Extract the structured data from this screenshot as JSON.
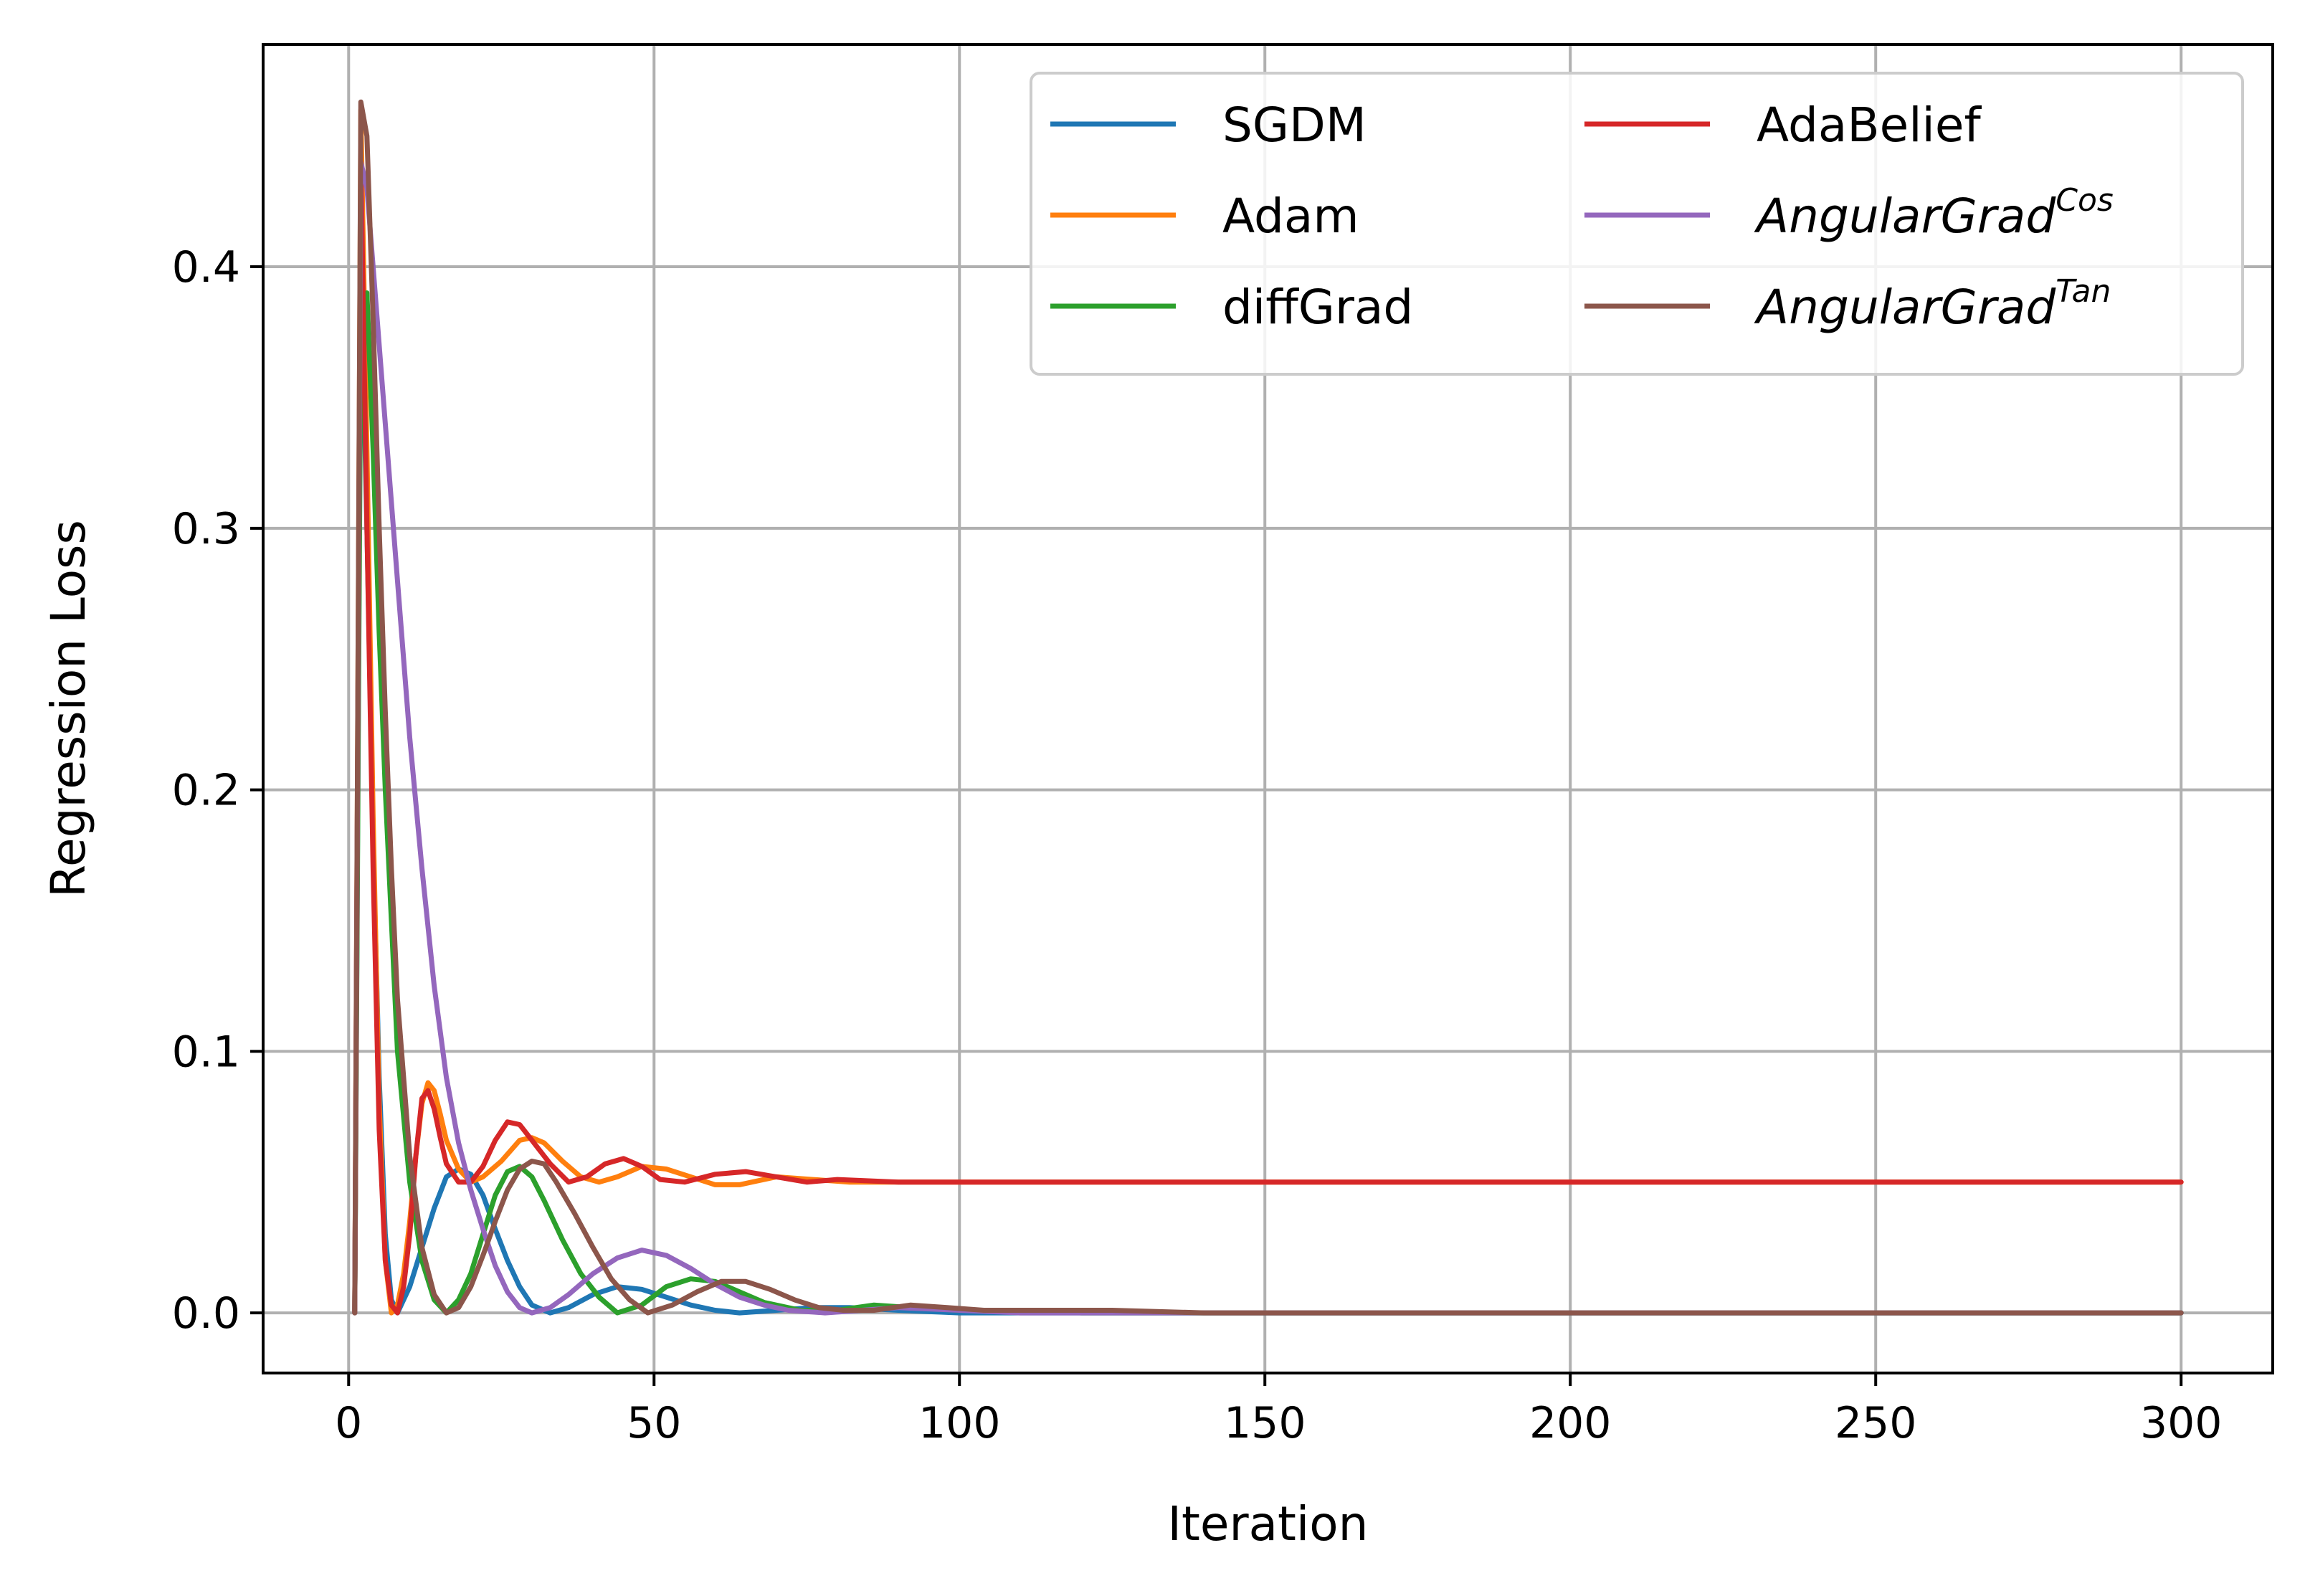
{
  "chart_data": {
    "type": "line",
    "title": "",
    "xlabel": "Iteration",
    "ylabel": "Regression Loss",
    "xlim": [
      -14,
      315
    ],
    "ylim": [
      -0.023,
      0.485
    ],
    "xticks": [
      0,
      50,
      100,
      150,
      200,
      250,
      300
    ],
    "xtick_labels": [
      "0",
      "50",
      "100",
      "150",
      "200",
      "250",
      "300"
    ],
    "yticks": [
      0.0,
      0.1,
      0.2,
      0.3,
      0.4
    ],
    "ytick_labels": [
      "0.0",
      "0.1",
      "0.2",
      "0.3",
      "0.4"
    ],
    "grid": true,
    "legend": {
      "placement": "top-right",
      "columns": 2
    },
    "series": [
      {
        "name": "SGDM",
        "legend_base": "SGDM",
        "legend_sup": "",
        "legend_italic": false,
        "color": "#1f77b4",
        "points": [
          [
            1,
            0
          ],
          [
            2,
            0.4
          ],
          [
            3,
            0.3
          ],
          [
            4,
            0.18
          ],
          [
            5,
            0.09
          ],
          [
            6,
            0.03
          ],
          [
            7,
            0.005
          ],
          [
            8,
            0
          ],
          [
            10,
            0.01
          ],
          [
            12,
            0.025
          ],
          [
            14,
            0.04
          ],
          [
            16,
            0.052
          ],
          [
            18,
            0.055
          ],
          [
            20,
            0.053
          ],
          [
            22,
            0.045
          ],
          [
            24,
            0.032
          ],
          [
            26,
            0.02
          ],
          [
            28,
            0.01
          ],
          [
            30,
            0.003
          ],
          [
            33,
            0
          ],
          [
            36,
            0.002
          ],
          [
            40,
            0.007
          ],
          [
            44,
            0.01
          ],
          [
            48,
            0.009
          ],
          [
            52,
            0.006
          ],
          [
            56,
            0.003
          ],
          [
            60,
            0.001
          ],
          [
            64,
            0
          ],
          [
            70,
            0.001
          ],
          [
            76,
            0.002
          ],
          [
            82,
            0.002
          ],
          [
            90,
            0.001
          ],
          [
            100,
            0
          ],
          [
            300,
            0
          ]
        ]
      },
      {
        "name": "Adam",
        "legend_base": "Adam",
        "legend_sup": "",
        "legend_italic": false,
        "color": "#ff7f0e",
        "points": [
          [
            1,
            0
          ],
          [
            2,
            0.46
          ],
          [
            3,
            0.33
          ],
          [
            4,
            0.19
          ],
          [
            5,
            0.08
          ],
          [
            6,
            0.02
          ],
          [
            7,
            0
          ],
          [
            8,
            0.003
          ],
          [
            9,
            0.015
          ],
          [
            10,
            0.035
          ],
          [
            11,
            0.06
          ],
          [
            12,
            0.08
          ],
          [
            13,
            0.088
          ],
          [
            14,
            0.085
          ],
          [
            15,
            0.076
          ],
          [
            16,
            0.066
          ],
          [
            18,
            0.055
          ],
          [
            20,
            0.05
          ],
          [
            22,
            0.052
          ],
          [
            25,
            0.058
          ],
          [
            28,
            0.066
          ],
          [
            30,
            0.067
          ],
          [
            32,
            0.065
          ],
          [
            35,
            0.058
          ],
          [
            38,
            0.052
          ],
          [
            41,
            0.05
          ],
          [
            44,
            0.052
          ],
          [
            48,
            0.056
          ],
          [
            52,
            0.055
          ],
          [
            56,
            0.052
          ],
          [
            60,
            0.049
          ],
          [
            64,
            0.049
          ],
          [
            70,
            0.052
          ],
          [
            76,
            0.051
          ],
          [
            82,
            0.05
          ],
          [
            90,
            0.05
          ],
          [
            100,
            0.05
          ],
          [
            120,
            0.05
          ],
          [
            300,
            0.05
          ]
        ]
      },
      {
        "name": "diffGrad",
        "legend_base": "diffGrad",
        "legend_sup": "",
        "legend_italic": false,
        "color": "#2ca02c",
        "points": [
          [
            1,
            0
          ],
          [
            2,
            0.38
          ],
          [
            3,
            0.39
          ],
          [
            4,
            0.33
          ],
          [
            5,
            0.26
          ],
          [
            6,
            0.2
          ],
          [
            7,
            0.15
          ],
          [
            8,
            0.1
          ],
          [
            10,
            0.05
          ],
          [
            12,
            0.02
          ],
          [
            14,
            0.005
          ],
          [
            16,
            0
          ],
          [
            18,
            0.005
          ],
          [
            20,
            0.015
          ],
          [
            22,
            0.03
          ],
          [
            24,
            0.045
          ],
          [
            26,
            0.054
          ],
          [
            28,
            0.056
          ],
          [
            30,
            0.052
          ],
          [
            32,
            0.043
          ],
          [
            35,
            0.028
          ],
          [
            38,
            0.015
          ],
          [
            41,
            0.006
          ],
          [
            44,
            0
          ],
          [
            48,
            0.003
          ],
          [
            52,
            0.01
          ],
          [
            56,
            0.013
          ],
          [
            60,
            0.012
          ],
          [
            64,
            0.008
          ],
          [
            68,
            0.004
          ],
          [
            74,
            0.001
          ],
          [
            80,
            0.001
          ],
          [
            86,
            0.003
          ],
          [
            92,
            0.002
          ],
          [
            100,
            0.001
          ],
          [
            110,
            0.001
          ],
          [
            120,
            0
          ],
          [
            300,
            0
          ]
        ]
      },
      {
        "name": "AdaBelief",
        "legend_base": "AdaBelief",
        "legend_sup": "",
        "legend_italic": false,
        "color": "#d62728",
        "points": [
          [
            1,
            0
          ],
          [
            2,
            0.44
          ],
          [
            3,
            0.3
          ],
          [
            4,
            0.17
          ],
          [
            5,
            0.07
          ],
          [
            6,
            0.02
          ],
          [
            7,
            0.003
          ],
          [
            8,
            0
          ],
          [
            9,
            0.01
          ],
          [
            10,
            0.03
          ],
          [
            11,
            0.06
          ],
          [
            12,
            0.082
          ],
          [
            13,
            0.085
          ],
          [
            14,
            0.078
          ],
          [
            15,
            0.067
          ],
          [
            16,
            0.057
          ],
          [
            18,
            0.05
          ],
          [
            20,
            0.05
          ],
          [
            22,
            0.056
          ],
          [
            24,
            0.066
          ],
          [
            26,
            0.073
          ],
          [
            28,
            0.072
          ],
          [
            30,
            0.066
          ],
          [
            33,
            0.057
          ],
          [
            36,
            0.05
          ],
          [
            39,
            0.052
          ],
          [
            42,
            0.057
          ],
          [
            45,
            0.059
          ],
          [
            48,
            0.056
          ],
          [
            51,
            0.051
          ],
          [
            55,
            0.05
          ],
          [
            60,
            0.053
          ],
          [
            65,
            0.054
          ],
          [
            70,
            0.052
          ],
          [
            75,
            0.05
          ],
          [
            80,
            0.051
          ],
          [
            90,
            0.05
          ],
          [
            100,
            0.05
          ],
          [
            300,
            0.05
          ]
        ]
      },
      {
        "name": "AngularGrad Cos",
        "legend_base": "AngularGrad",
        "legend_sup": "Cos",
        "legend_italic": true,
        "color": "#9467bd",
        "points": [
          [
            1,
            0
          ],
          [
            2,
            0.44
          ],
          [
            3,
            0.43
          ],
          [
            4,
            0.4
          ],
          [
            6,
            0.34
          ],
          [
            8,
            0.28
          ],
          [
            10,
            0.22
          ],
          [
            12,
            0.17
          ],
          [
            14,
            0.125
          ],
          [
            16,
            0.09
          ],
          [
            18,
            0.065
          ],
          [
            20,
            0.047
          ],
          [
            22,
            0.032
          ],
          [
            24,
            0.018
          ],
          [
            26,
            0.008
          ],
          [
            28,
            0.002
          ],
          [
            30,
            0
          ],
          [
            33,
            0.002
          ],
          [
            36,
            0.007
          ],
          [
            40,
            0.015
          ],
          [
            44,
            0.021
          ],
          [
            48,
            0.024
          ],
          [
            52,
            0.022
          ],
          [
            56,
            0.017
          ],
          [
            60,
            0.011
          ],
          [
            64,
            0.006
          ],
          [
            68,
            0.003
          ],
          [
            72,
            0.001
          ],
          [
            78,
            0
          ],
          [
            84,
            0.001
          ],
          [
            90,
            0.002
          ],
          [
            100,
            0.001
          ],
          [
            110,
            0
          ],
          [
            300,
            0
          ]
        ]
      },
      {
        "name": "AngularGrad Tan",
        "legend_base": "AngularGrad",
        "legend_sup": "Tan",
        "legend_italic": true,
        "color": "#8c564b",
        "points": [
          [
            1,
            0
          ],
          [
            2,
            0.463
          ],
          [
            3,
            0.45
          ],
          [
            4,
            0.38
          ],
          [
            5,
            0.3
          ],
          [
            6,
            0.23
          ],
          [
            7,
            0.17
          ],
          [
            8,
            0.12
          ],
          [
            10,
            0.06
          ],
          [
            12,
            0.025
          ],
          [
            14,
            0.007
          ],
          [
            16,
            0
          ],
          [
            18,
            0.002
          ],
          [
            20,
            0.01
          ],
          [
            22,
            0.022
          ],
          [
            24,
            0.035
          ],
          [
            26,
            0.047
          ],
          [
            28,
            0.055
          ],
          [
            30,
            0.058
          ],
          [
            32,
            0.057
          ],
          [
            34,
            0.05
          ],
          [
            37,
            0.038
          ],
          [
            40,
            0.025
          ],
          [
            43,
            0.013
          ],
          [
            46,
            0.005
          ],
          [
            49,
            0
          ],
          [
            53,
            0.003
          ],
          [
            57,
            0.008
          ],
          [
            61,
            0.012
          ],
          [
            65,
            0.012
          ],
          [
            69,
            0.009
          ],
          [
            73,
            0.005
          ],
          [
            77,
            0.002
          ],
          [
            81,
            0.001
          ],
          [
            86,
            0.001
          ],
          [
            92,
            0.003
          ],
          [
            98,
            0.002
          ],
          [
            104,
            0.001
          ],
          [
            115,
            0.001
          ],
          [
            125,
            0.001
          ],
          [
            140,
            0
          ],
          [
            300,
            0
          ]
        ]
      }
    ]
  }
}
